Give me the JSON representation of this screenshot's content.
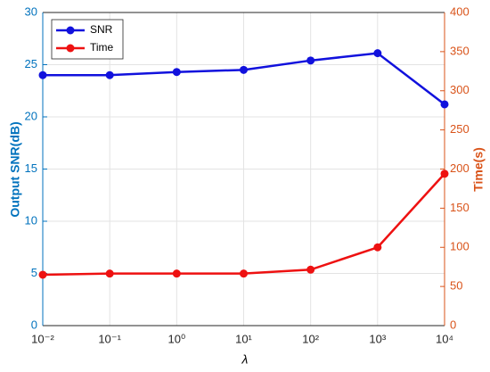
{
  "chart_data": {
    "type": "line",
    "x_label": "λ",
    "y_label": "Output SNR(dB)",
    "y2_label": "Time(s)",
    "x": [
      0.01,
      0.1,
      1,
      10,
      100,
      1000,
      10000
    ],
    "xlog": true,
    "xlim": [
      0.01,
      10000
    ],
    "xticks": [
      {
        "value": 0.01,
        "label": "10⁻²"
      },
      {
        "value": 0.1,
        "label": "10⁻¹"
      },
      {
        "value": 1,
        "label": "10⁰"
      },
      {
        "value": 10,
        "label": "10¹"
      },
      {
        "value": 100,
        "label": "10²"
      },
      {
        "value": 1000,
        "label": "10³"
      },
      {
        "value": 10000,
        "label": "10⁴"
      }
    ],
    "ylim": [
      0,
      30
    ],
    "yticks": [
      0,
      5,
      10,
      15,
      20,
      25,
      30
    ],
    "y_color": "#0072bd",
    "y2lim": [
      0,
      400
    ],
    "y2ticks": [
      0,
      50,
      100,
      150,
      200,
      250,
      300,
      350,
      400
    ],
    "y2_color": "#d95319",
    "grid": true,
    "legend": "upper left",
    "series": [
      {
        "name": "SNR",
        "color": "#1111dd",
        "values": [
          24.0,
          24.0,
          24.3,
          24.5,
          25.4,
          26.1,
          21.2
        ]
      },
      {
        "name": "Time",
        "color": "#ee1111",
        "axis": "y2",
        "values": [
          65,
          66.5,
          66.5,
          66.5,
          71.5,
          100,
          194
        ]
      }
    ]
  }
}
